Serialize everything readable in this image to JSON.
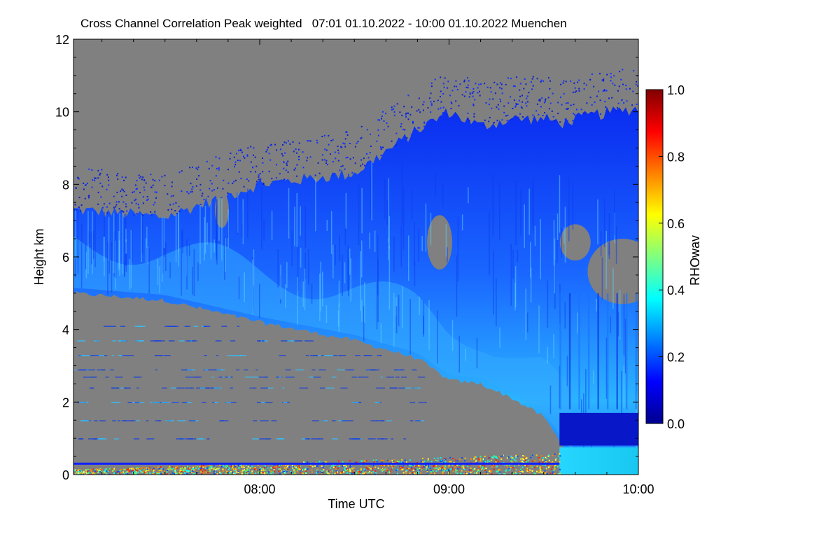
{
  "chart_data": {
    "type": "heatmap",
    "title": "Cross Channel Correlation Peak weighted   07:01 01.10.2022 - 10:00 01.10.2022 Muenchen",
    "xlabel": "Time UTC",
    "ylabel": "Height km",
    "xlim": [
      "07:01",
      "10:00"
    ],
    "ylim": [
      0,
      12
    ],
    "x_ticks": [
      "08:00",
      "09:00",
      "10:00"
    ],
    "y_ticks": [
      "0",
      "2",
      "4",
      "6",
      "8",
      "10",
      "12"
    ],
    "colorbar": {
      "label": "RHOwav",
      "range": [
        0.0,
        1.0
      ],
      "ticks": [
        "0.0",
        "0.2",
        "0.4",
        "0.6",
        "0.8",
        "1.0"
      ],
      "colormap": "jet"
    },
    "background_color": "#808080",
    "cloud_boundaries": {
      "time": [
        "07:01",
        "07:30",
        "08:00",
        "08:30",
        "08:50",
        "09:00",
        "09:10",
        "09:20",
        "09:30",
        "09:36",
        "09:45",
        "10:00"
      ],
      "base_km": [
        5.0,
        4.8,
        4.2,
        3.7,
        3.2,
        2.6,
        2.5,
        2.1,
        1.6,
        0.8,
        0.05,
        0.05
      ],
      "top_km": [
        7.3,
        7.1,
        8.0,
        8.3,
        9.5,
        10.0,
        9.6,
        9.8,
        9.8,
        9.7,
        9.9,
        10.1
      ]
    },
    "near_surface_layer": {
      "height_km": [
        0.0,
        0.4
      ],
      "until": "09:35"
    }
  }
}
